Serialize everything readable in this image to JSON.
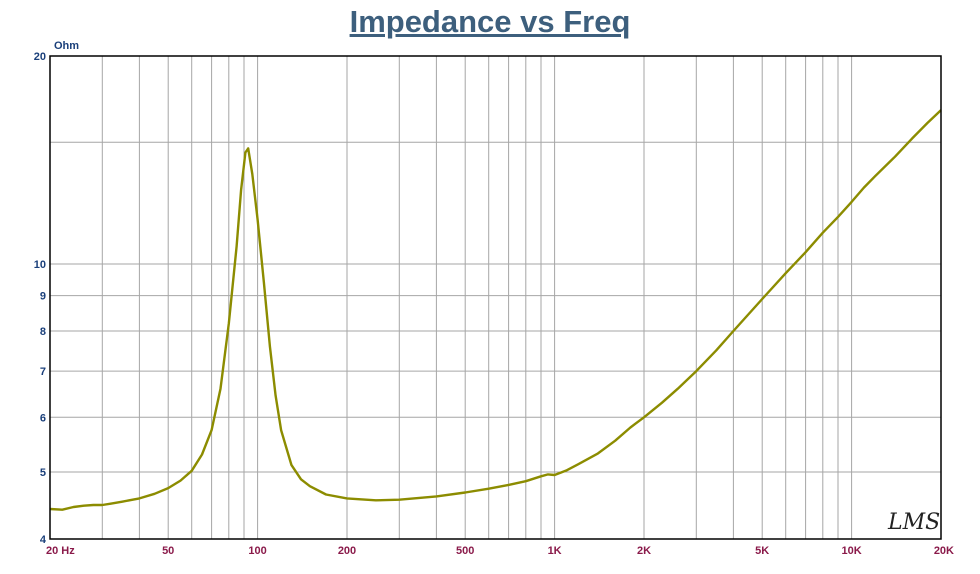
{
  "chart_data": {
    "type": "line",
    "title": "Impedance vs Freq",
    "y_unit": "Ohm",
    "x_scale": "log",
    "y_scale": "log",
    "xlim": [
      20,
      20000
    ],
    "ylim": [
      4,
      20
    ],
    "grid": true,
    "x_tick_labels": [
      {
        "value": 20,
        "label": "20 Hz"
      },
      {
        "value": 50,
        "label": "50"
      },
      {
        "value": 100,
        "label": "100"
      },
      {
        "value": 200,
        "label": "200"
      },
      {
        "value": 500,
        "label": "500"
      },
      {
        "value": 1000,
        "label": "1K"
      },
      {
        "value": 2000,
        "label": "2K"
      },
      {
        "value": 5000,
        "label": "5K"
      },
      {
        "value": 10000,
        "label": "10K"
      },
      {
        "value": 20000,
        "label": "20K"
      }
    ],
    "y_tick_labels": [
      {
        "value": 20,
        "label": "20"
      },
      {
        "value": 10,
        "label": "10"
      },
      {
        "value": 9,
        "label": "9"
      },
      {
        "value": 8,
        "label": "8"
      },
      {
        "value": 7,
        "label": "7"
      },
      {
        "value": 6,
        "label": "6"
      },
      {
        "value": 5,
        "label": "5"
      },
      {
        "value": 4,
        "label": "4"
      }
    ],
    "x_grid": [
      20,
      30,
      40,
      50,
      60,
      70,
      80,
      90,
      100,
      200,
      300,
      400,
      500,
      600,
      700,
      800,
      900,
      1000,
      2000,
      3000,
      4000,
      5000,
      6000,
      7000,
      8000,
      9000,
      10000,
      20000
    ],
    "y_grid": [
      4,
      5,
      6,
      7,
      8,
      9,
      10,
      15,
      20
    ],
    "series": [
      {
        "color": "#8c8c00",
        "points": [
          [
            20,
            4.42
          ],
          [
            22,
            4.41
          ],
          [
            24,
            4.45
          ],
          [
            26,
            4.47
          ],
          [
            28,
            4.48
          ],
          [
            30,
            4.48
          ],
          [
            32,
            4.5
          ],
          [
            35,
            4.53
          ],
          [
            40,
            4.58
          ],
          [
            45,
            4.65
          ],
          [
            50,
            4.74
          ],
          [
            55,
            4.86
          ],
          [
            60,
            5.02
          ],
          [
            65,
            5.3
          ],
          [
            70,
            5.75
          ],
          [
            75,
            6.6
          ],
          [
            80,
            8.2
          ],
          [
            85,
            10.6
          ],
          [
            88,
            12.8
          ],
          [
            91,
            14.5
          ],
          [
            93,
            14.7
          ],
          [
            96,
            13.5
          ],
          [
            100,
            11.6
          ],
          [
            105,
            9.4
          ],
          [
            110,
            7.6
          ],
          [
            115,
            6.45
          ],
          [
            120,
            5.75
          ],
          [
            130,
            5.12
          ],
          [
            140,
            4.88
          ],
          [
            150,
            4.77
          ],
          [
            170,
            4.64
          ],
          [
            200,
            4.58
          ],
          [
            250,
            4.55
          ],
          [
            300,
            4.56
          ],
          [
            400,
            4.61
          ],
          [
            500,
            4.67
          ],
          [
            600,
            4.73
          ],
          [
            700,
            4.79
          ],
          [
            800,
            4.85
          ],
          [
            900,
            4.93
          ],
          [
            950,
            4.96
          ],
          [
            1000,
            4.95
          ],
          [
            1100,
            5.03
          ],
          [
            1200,
            5.13
          ],
          [
            1400,
            5.32
          ],
          [
            1600,
            5.55
          ],
          [
            1800,
            5.8
          ],
          [
            2000,
            6.0
          ],
          [
            2300,
            6.3
          ],
          [
            2600,
            6.6
          ],
          [
            3000,
            7.0
          ],
          [
            3500,
            7.5
          ],
          [
            4000,
            8.0
          ],
          [
            5000,
            8.9
          ],
          [
            6000,
            9.7
          ],
          [
            7000,
            10.4
          ],
          [
            8000,
            11.1
          ],
          [
            9000,
            11.7
          ],
          [
            10000,
            12.3
          ],
          [
            11000,
            12.9
          ],
          [
            12000,
            13.4
          ],
          [
            14000,
            14.3
          ],
          [
            16000,
            15.2
          ],
          [
            18000,
            16.0
          ],
          [
            20000,
            16.7
          ]
        ]
      }
    ]
  },
  "watermark": "LMS"
}
